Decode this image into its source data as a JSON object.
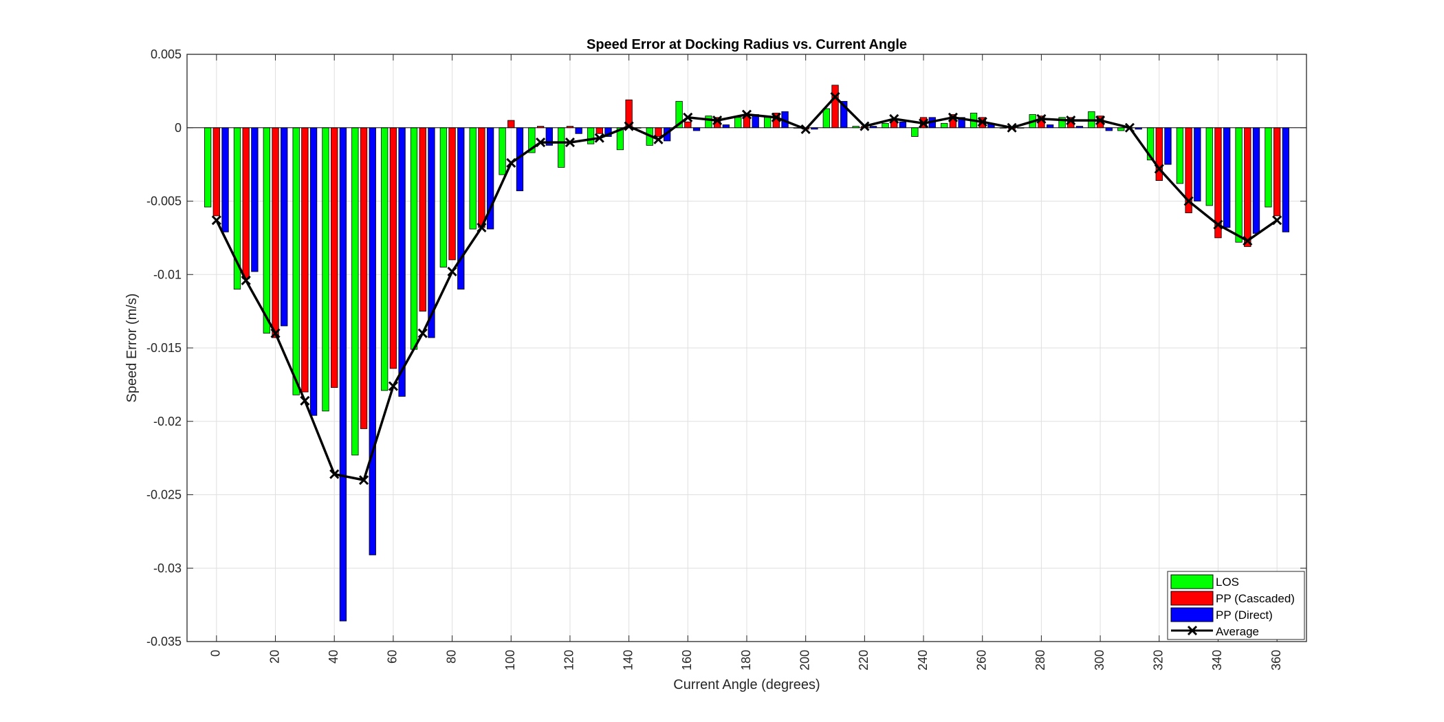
{
  "chart_data": {
    "type": "bar",
    "title": "Speed Error at Docking Radius vs. Current Angle",
    "xlabel": "Current Angle (degrees)",
    "ylabel": "Speed Error (m/s)",
    "xlim": [
      -10,
      370
    ],
    "ylim": [
      -0.035,
      0.005
    ],
    "grid": true,
    "legend_position": "bottom-right",
    "x": [
      0,
      10,
      20,
      30,
      40,
      50,
      60,
      70,
      80,
      90,
      100,
      110,
      120,
      130,
      140,
      150,
      160,
      170,
      180,
      190,
      200,
      210,
      220,
      230,
      240,
      250,
      260,
      270,
      280,
      290,
      300,
      310,
      320,
      330,
      340,
      350,
      360
    ],
    "x_ticks": [
      0,
      20,
      40,
      60,
      80,
      100,
      120,
      140,
      160,
      180,
      200,
      220,
      240,
      260,
      280,
      300,
      320,
      340,
      360
    ],
    "y_ticks": [
      0.005,
      0,
      -0.005,
      -0.01,
      -0.015,
      -0.02,
      -0.025,
      -0.03,
      -0.035
    ],
    "y_tick_labels": [
      "0.005",
      "0",
      "-0.005",
      "-0.01",
      "-0.015",
      "-0.02",
      "-0.025",
      "-0.03",
      "-0.035"
    ],
    "series": [
      {
        "name": "LOS",
        "color": "#00ff00",
        "values": [
          -0.0054,
          -0.011,
          -0.014,
          -0.0182,
          -0.0193,
          -0.0223,
          -0.0179,
          -0.0151,
          -0.0095,
          -0.0069,
          -0.0032,
          -0.0017,
          -0.0027,
          -0.0011,
          -0.0015,
          -0.0012,
          0.0018,
          0.0008,
          0.0007,
          0.0007,
          0.0,
          0.0013,
          0.0001,
          0.0003,
          -0.0006,
          0.0003,
          0.001,
          0.0,
          0.0009,
          0.0007,
          0.0011,
          -0.0002,
          -0.0022,
          -0.0038,
          -0.0053,
          -0.0078,
          -0.0054
        ]
      },
      {
        "name": "PP (Cascaded)",
        "color": "#ff0000",
        "values": [
          -0.006,
          -0.0103,
          -0.0143,
          -0.018,
          -0.0177,
          -0.0205,
          -0.0164,
          -0.0125,
          -0.009,
          -0.0068,
          0.0005,
          0.0001,
          0.0001,
          -0.0004,
          0.0019,
          -0.0006,
          0.0004,
          0.0007,
          0.0009,
          0.001,
          -0.0001,
          0.0029,
          0.0001,
          0.0006,
          0.0007,
          0.0009,
          0.0007,
          -0.0001,
          0.0008,
          0.0007,
          0.0008,
          0.0,
          -0.0036,
          -0.0058,
          -0.0075,
          -0.0081,
          -0.006
        ]
      },
      {
        "name": "PP (Direct)",
        "color": "#0000ff",
        "values": [
          -0.0071,
          -0.0098,
          -0.0135,
          -0.0196,
          -0.0336,
          -0.0291,
          -0.0183,
          -0.0143,
          -0.011,
          -0.0069,
          -0.0043,
          -0.0012,
          -0.0004,
          -0.0006,
          0.0,
          -0.0009,
          -0.0002,
          0.0002,
          0.0009,
          0.0011,
          -0.0001,
          0.0018,
          0.0001,
          0.0004,
          0.0007,
          0.0007,
          0.0003,
          0.0,
          0.0002,
          0.0001,
          -0.0002,
          -0.0001,
          -0.0025,
          -0.005,
          -0.0068,
          -0.0072,
          -0.0071
        ]
      },
      {
        "name": "Average",
        "color": "#000000",
        "values": [
          -0.0063,
          -0.0104,
          -0.014,
          -0.0186,
          -0.0236,
          -0.024,
          -0.0176,
          -0.014,
          -0.0098,
          -0.0068,
          -0.0024,
          -0.001,
          -0.001,
          -0.0007,
          0.0001,
          -0.0008,
          0.0007,
          0.0005,
          0.0009,
          0.0007,
          -0.0001,
          0.0021,
          0.0001,
          0.0006,
          0.0003,
          0.0007,
          0.0004,
          0.0,
          0.0006,
          0.0005,
          0.0005,
          0.0,
          -0.0028,
          -0.005,
          -0.0066,
          -0.0077,
          -0.0063
        ]
      }
    ]
  }
}
